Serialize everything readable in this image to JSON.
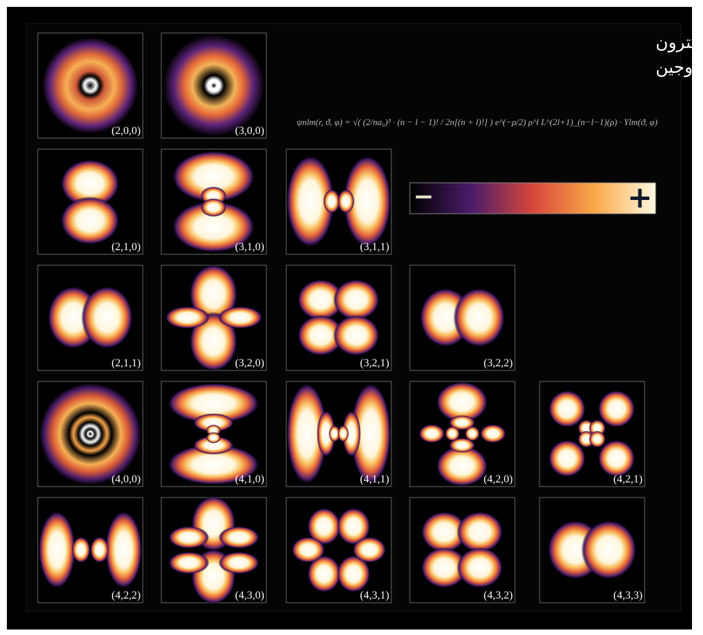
{
  "header": {
    "title_lines": [
      "الوظائف الموجية للإلكترون",
      "في ذرة الهيدروجين"
    ],
    "formula": "ψnlm(r, ϑ, φ) = √( (2/na₀)³ · (n − l − 1)! / 2n[(n + l)!] ) e^(−ρ/2) ρ^l L^(2l+1)_(n−l−1)(ρ) · Ylm(ϑ, φ)"
  },
  "colorbar": {
    "minus": "−",
    "plus": "+"
  },
  "grid": {
    "rows": [
      [
        "(2,0,0)",
        "(3,0,0)"
      ],
      [
        "(2,1,0)",
        "(3,1,0)",
        "(3,1,1)"
      ],
      [
        "(2,1,1)",
        "(3,2,0)",
        "(3,2,1)",
        "(3,2,2)"
      ],
      [
        "(4,0,0)",
        "(4,1,0)",
        "(4,1,1)",
        "(4,2,0)",
        "(4,2,1)"
      ],
      [
        "(4,2,2)",
        "(4,3,0)",
        "(4,3,1)",
        "(4,3,2)",
        "(4,3,3)"
      ]
    ]
  }
}
